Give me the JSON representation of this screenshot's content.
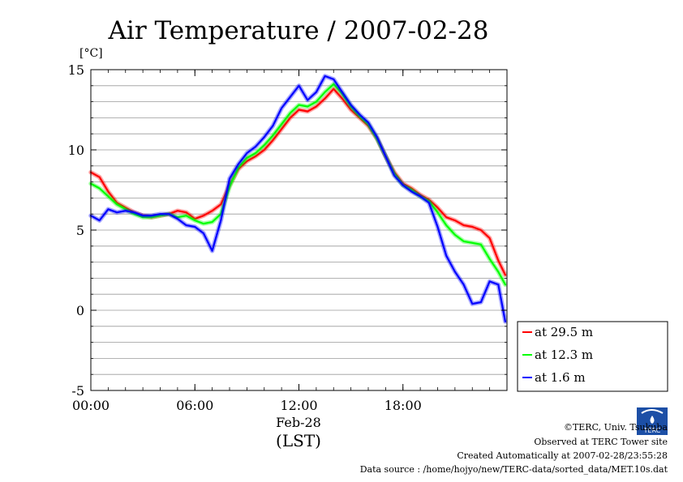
{
  "chart_data": {
    "type": "line",
    "title": "Air Temperature / 2007-02-28",
    "ylabel": "[°C]",
    "ylim": [
      -5,
      15
    ],
    "xlim": [
      0,
      24
    ],
    "y_ticks": [
      -5,
      0,
      5,
      10,
      15
    ],
    "x_ticks": [
      0,
      6,
      12,
      18
    ],
    "x_tick_labels": [
      "00:00",
      "06:00",
      "12:00",
      "18:00"
    ],
    "x_date_label": "Feb-28",
    "xlabel": "(LST)",
    "grid": true,
    "legend_position": "right",
    "series": [
      {
        "name": "at 29.5 m",
        "color": "#ff0000",
        "x": [
          0,
          0.5,
          1,
          1.5,
          2,
          2.5,
          3,
          3.5,
          4,
          4.5,
          5,
          5.5,
          6,
          6.5,
          7,
          7.5,
          8,
          8.5,
          9,
          9.5,
          10,
          10.5,
          11,
          11.5,
          12,
          12.5,
          13,
          13.5,
          14,
          14.5,
          15,
          15.5,
          16,
          16.5,
          17,
          17.5,
          18,
          18.5,
          19,
          19.5,
          20,
          20.5,
          21,
          21.5,
          22,
          22.5,
          23,
          23.5,
          23.9
        ],
        "y": [
          8.6,
          8.3,
          7.4,
          6.7,
          6.4,
          6.1,
          5.9,
          5.8,
          5.9,
          6.0,
          6.2,
          6.1,
          5.7,
          5.9,
          6.2,
          6.6,
          7.8,
          8.8,
          9.3,
          9.6,
          10.0,
          10.6,
          11.3,
          12.0,
          12.5,
          12.4,
          12.7,
          13.2,
          13.8,
          13.2,
          12.5,
          12.0,
          11.5,
          10.7,
          9.6,
          8.6,
          7.9,
          7.6,
          7.2,
          6.9,
          6.4,
          5.8,
          5.6,
          5.3,
          5.2,
          5.0,
          4.5,
          3.1,
          2.2
        ]
      },
      {
        "name": "at 12.3 m",
        "color": "#00ff00",
        "x": [
          0,
          0.5,
          1,
          1.5,
          2,
          2.5,
          3,
          3.5,
          4,
          4.5,
          5,
          5.5,
          6,
          6.5,
          7,
          7.5,
          8,
          8.5,
          9,
          9.5,
          10,
          10.5,
          11,
          11.5,
          12,
          12.5,
          13,
          13.5,
          14,
          14.5,
          15,
          15.5,
          16,
          16.5,
          17,
          17.5,
          18,
          18.5,
          19,
          19.5,
          20,
          20.5,
          21,
          21.5,
          22,
          22.5,
          23,
          23.5,
          23.9
        ],
        "y": [
          7.9,
          7.6,
          7.1,
          6.6,
          6.3,
          6.0,
          5.8,
          5.8,
          5.9,
          6.0,
          5.8,
          5.9,
          5.6,
          5.4,
          5.5,
          6.0,
          7.7,
          8.9,
          9.5,
          9.8,
          10.3,
          10.9,
          11.6,
          12.3,
          12.8,
          12.7,
          13.0,
          13.6,
          14.1,
          13.5,
          12.7,
          12.1,
          11.6,
          10.7,
          9.6,
          8.5,
          7.8,
          7.5,
          7.1,
          6.8,
          6.1,
          5.3,
          4.7,
          4.3,
          4.2,
          4.1,
          3.2,
          2.4,
          1.6
        ]
      },
      {
        "name": "at 1.6 m",
        "color": "#0000ff",
        "x": [
          0,
          0.5,
          1,
          1.5,
          2,
          2.5,
          3,
          3.5,
          4,
          4.5,
          5,
          5.5,
          6,
          6.5,
          7,
          7.5,
          8,
          8.5,
          9,
          9.5,
          10,
          10.5,
          11,
          11.5,
          12,
          12.5,
          13,
          13.5,
          14,
          14.5,
          15,
          15.5,
          16,
          16.5,
          17,
          17.5,
          18,
          18.5,
          19,
          19.5,
          20,
          20.5,
          21,
          21.5,
          22,
          22.5,
          23,
          23.5,
          23.9
        ],
        "y": [
          5.9,
          5.6,
          6.3,
          6.1,
          6.2,
          6.1,
          5.9,
          5.9,
          6.0,
          6.0,
          5.7,
          5.3,
          5.2,
          4.8,
          3.7,
          5.6,
          8.2,
          9.1,
          9.8,
          10.2,
          10.8,
          11.5,
          12.6,
          13.3,
          14.0,
          13.1,
          13.6,
          14.6,
          14.4,
          13.6,
          12.8,
          12.2,
          11.7,
          10.8,
          9.6,
          8.4,
          7.8,
          7.4,
          7.1,
          6.7,
          5.2,
          3.4,
          2.4,
          1.6,
          0.4,
          0.5,
          1.8,
          1.6,
          -0.7
        ]
      }
    ]
  },
  "credits": {
    "copyright": "©TERC, Univ. Tsukuba",
    "observed": "Observed at TERC Tower site",
    "created": "Created Automatically at 2007-02-28/23:55:28",
    "source": "Data source : /home/hojyo/new/TERC-data/sorted_data/MET.10s.dat",
    "logo_text": "TERC"
  }
}
